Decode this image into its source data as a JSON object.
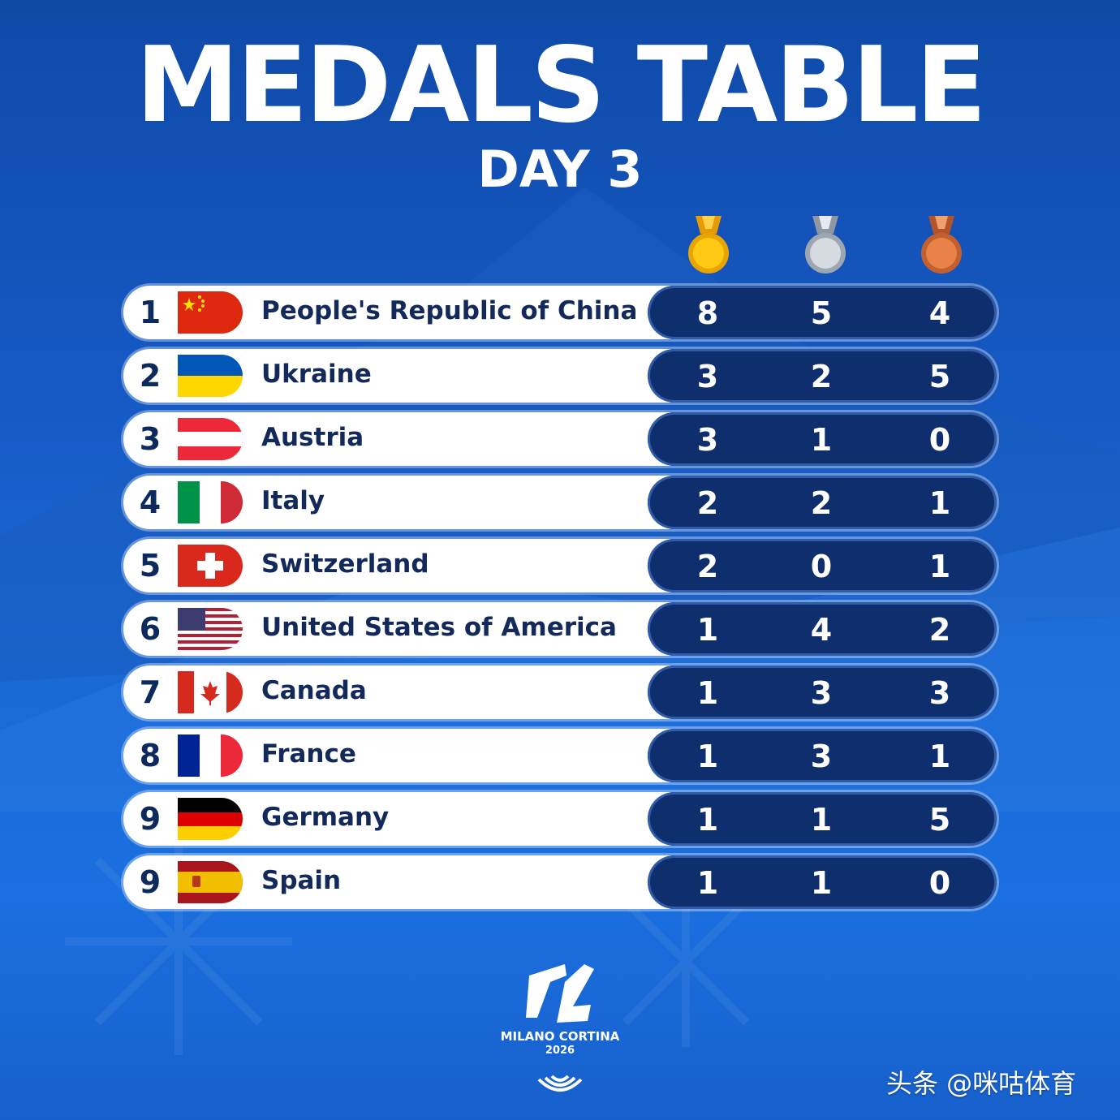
{
  "header": {
    "title": "MEDALS TABLE",
    "subtitle": "DAY 3"
  },
  "medal_icons": [
    {
      "name": "gold-medal-icon",
      "color": "#f2b705"
    },
    {
      "name": "silver-medal-icon",
      "color": "#b9c0c9"
    },
    {
      "name": "bronze-medal-icon",
      "color": "#d8713e"
    }
  ],
  "colors": {
    "row_bg": "#ffffff",
    "score_bg": "#0e2e6e",
    "text_dark": "#12295a",
    "page_bg": "#1659c4"
  },
  "table": {
    "columns": [
      "gold",
      "silver",
      "bronze"
    ],
    "rows": [
      {
        "rank": "1",
        "country": "People's Republic of China",
        "flag": "china-flag-icon",
        "gold": "8",
        "silver": "5",
        "bronze": "4"
      },
      {
        "rank": "2",
        "country": "Ukraine",
        "flag": "ukraine-flag-icon",
        "gold": "3",
        "silver": "2",
        "bronze": "5"
      },
      {
        "rank": "3",
        "country": "Austria",
        "flag": "austria-flag-icon",
        "gold": "3",
        "silver": "1",
        "bronze": "0"
      },
      {
        "rank": "4",
        "country": "Italy",
        "flag": "italy-flag-icon",
        "gold": "2",
        "silver": "2",
        "bronze": "1"
      },
      {
        "rank": "5",
        "country": "Switzerland",
        "flag": "switzerland-flag-icon",
        "gold": "2",
        "silver": "0",
        "bronze": "1"
      },
      {
        "rank": "6",
        "country": "United States of America",
        "flag": "usa-flag-icon",
        "gold": "1",
        "silver": "4",
        "bronze": "2"
      },
      {
        "rank": "7",
        "country": "Canada",
        "flag": "canada-flag-icon",
        "gold": "1",
        "silver": "3",
        "bronze": "3"
      },
      {
        "rank": "8",
        "country": "France",
        "flag": "france-flag-icon",
        "gold": "1",
        "silver": "3",
        "bronze": "1"
      },
      {
        "rank": "9",
        "country": "Germany",
        "flag": "germany-flag-icon",
        "gold": "1",
        "silver": "1",
        "bronze": "5"
      },
      {
        "rank": "9",
        "country": "Spain",
        "flag": "spain-flag-icon",
        "gold": "1",
        "silver": "1",
        "bronze": "0"
      }
    ]
  },
  "footer": {
    "logo_mark": "milano-cortina-logo",
    "logo_text": "MILANO CORTINA",
    "logo_year": "2026",
    "paralympic_icon": "paralympic-agitos-icon",
    "watermark": "头条 @咪咕体育"
  }
}
